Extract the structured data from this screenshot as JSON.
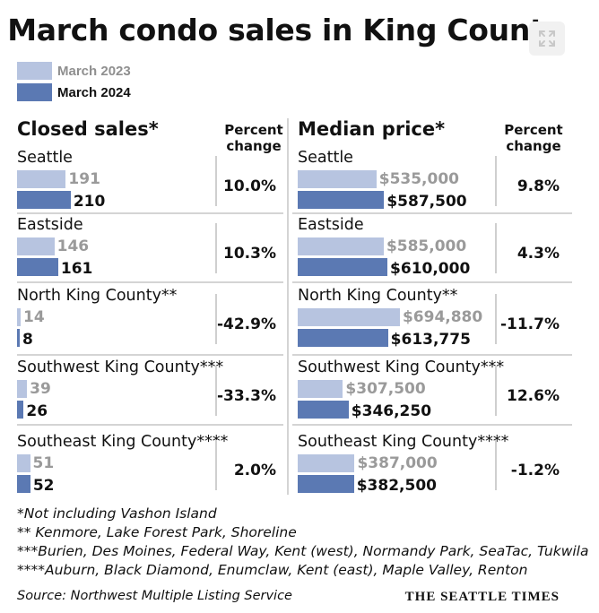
{
  "title": "March condo sales in King County",
  "colors": {
    "prev": "#b7c4e0",
    "cur": "#5b79b3"
  },
  "legend": {
    "prev_label": "March 2023",
    "cur_label": "March 2024"
  },
  "left_header": "Closed sales*",
  "right_header": "Median price*",
  "pct_header_line1": "Percent",
  "pct_header_line2": "change",
  "chart_data": [
    {
      "type": "bar",
      "title": "Closed sales*",
      "series": [
        {
          "name": "March 2023"
        },
        {
          "name": "March 2024"
        }
      ],
      "rows": [
        {
          "region": "Seattle",
          "prev": 191,
          "cur": 210,
          "prev_label": "191",
          "cur_label": "210",
          "pct": "10.0%"
        },
        {
          "region": "Eastside",
          "prev": 146,
          "cur": 161,
          "prev_label": "146",
          "cur_label": "161",
          "pct": "10.3%"
        },
        {
          "region": "North King County**",
          "prev": 14,
          "cur": 8,
          "prev_label": "14",
          "cur_label": "8",
          "pct": "-42.9%"
        },
        {
          "region": "Southwest King County***",
          "prev": 39,
          "cur": 26,
          "prev_label": "39",
          "cur_label": "26",
          "pct": "-33.3%"
        },
        {
          "region": "Southeast King County****",
          "prev": 51,
          "cur": 52,
          "prev_label": "51",
          "cur_label": "52",
          "pct": "2.0%"
        }
      ]
    },
    {
      "type": "bar",
      "title": "Median price*",
      "series": [
        {
          "name": "March 2023"
        },
        {
          "name": "March 2024"
        }
      ],
      "rows": [
        {
          "region": "Seattle",
          "prev": 535000,
          "cur": 587500,
          "prev_label": "$535,000",
          "cur_label": "$587,500",
          "pct": "9.8%"
        },
        {
          "region": "Eastside",
          "prev": 585000,
          "cur": 610000,
          "prev_label": "$585,000",
          "cur_label": "$610,000",
          "pct": "4.3%"
        },
        {
          "region": "North King County**",
          "prev": 694880,
          "cur": 613775,
          "prev_label": "$694,880",
          "cur_label": "$613,775",
          "pct": "-11.7%"
        },
        {
          "region": "Southwest King County***",
          "prev": 307500,
          "cur": 346250,
          "prev_label": "$307,500",
          "cur_label": "$346,250",
          "pct": "12.6%"
        },
        {
          "region": "Southeast King County****",
          "prev": 387000,
          "cur": 382500,
          "prev_label": "$387,000",
          "cur_label": "$382,500",
          "pct": "-1.2%"
        }
      ]
    }
  ],
  "footnotes": [
    "*Not including Vashon Island",
    "** Kenmore, Lake Forest Park, Shoreline",
    "***Burien, Des Moines, Federal Way, Kent (west), Normandy Park, SeaTac, Tukwila",
    "****Auburn, Black Diamond, Enumclaw, Kent (east), Maple Valley, Renton"
  ],
  "source": "Source: Northwest Multiple Listing Service",
  "brand": "THE SEATTLE TIMES"
}
